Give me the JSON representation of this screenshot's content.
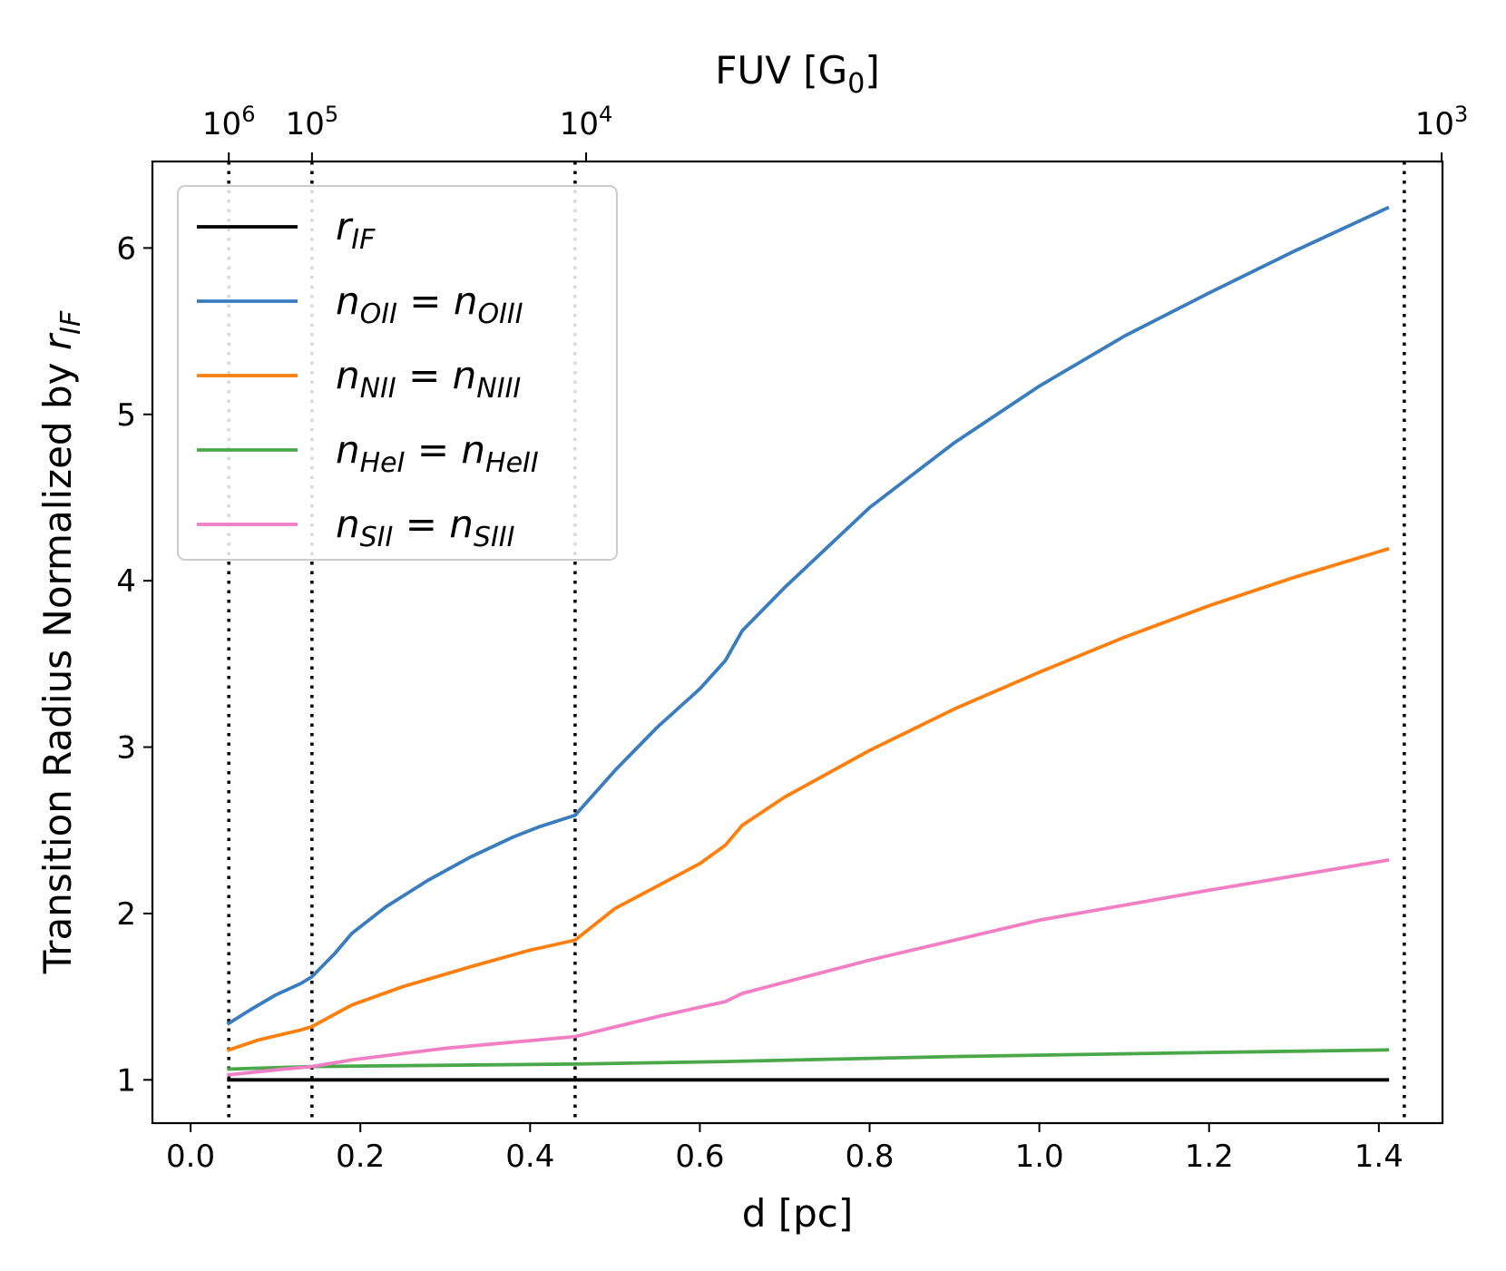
{
  "chart_data": {
    "type": "line",
    "xlabel": "d [pc]",
    "ylabel_prefix": "Transition Radius Normalized by ",
    "ylabel_var": "r",
    "ylabel_sub": "IF",
    "top_xlabel": "FUV [G",
    "top_xlabel_sub": "0",
    "top_xlabel_suffix": "]",
    "xlim": [
      -0.045,
      1.475
    ],
    "ylim": [
      0.74,
      6.52
    ],
    "xticks": [
      {
        "v": 0.0,
        "label": "0.0"
      },
      {
        "v": 0.2,
        "label": "0.2"
      },
      {
        "v": 0.4,
        "label": "0.4"
      },
      {
        "v": 0.6,
        "label": "0.6"
      },
      {
        "v": 0.8,
        "label": "0.8"
      },
      {
        "v": 1.0,
        "label": "1.0"
      },
      {
        "v": 1.2,
        "label": "1.2"
      },
      {
        "v": 1.4,
        "label": "1.4"
      }
    ],
    "yticks": [
      {
        "v": 1,
        "label": "1"
      },
      {
        "v": 2,
        "label": "2"
      },
      {
        "v": 3,
        "label": "3"
      },
      {
        "v": 4,
        "label": "4"
      },
      {
        "v": 5,
        "label": "5"
      },
      {
        "v": 6,
        "label": "6"
      }
    ],
    "top_ticks": [
      {
        "v": 0.045,
        "base": "10",
        "exp": "6"
      },
      {
        "v": 0.143,
        "base": "10",
        "exp": "5"
      },
      {
        "v": 0.466,
        "base": "10",
        "exp": "4"
      },
      {
        "v": 1.474,
        "base": "10",
        "exp": "3"
      }
    ],
    "vlines": [
      0.045,
      0.143,
      0.453,
      1.43
    ],
    "series": [
      {
        "name": "r_IF",
        "label_main": "r",
        "label_sub": "IF",
        "color": "#000000",
        "x": [
          0.045,
          1.41
        ],
        "y": [
          1.0,
          1.0
        ]
      },
      {
        "name": "n_OII = n_OIII",
        "label_a": "n",
        "label_a_sub": "OII",
        "label_b": "n",
        "label_b_sub": "OIII",
        "color": "#3a7dbf",
        "x": [
          0.045,
          0.07,
          0.1,
          0.13,
          0.143,
          0.17,
          0.19,
          0.23,
          0.28,
          0.33,
          0.38,
          0.41,
          0.453,
          0.5,
          0.55,
          0.6,
          0.63,
          0.65,
          0.7,
          0.8,
          0.9,
          1.0,
          1.1,
          1.2,
          1.3,
          1.41
        ],
        "y": [
          1.34,
          1.42,
          1.51,
          1.58,
          1.62,
          1.76,
          1.88,
          2.04,
          2.2,
          2.34,
          2.46,
          2.52,
          2.59,
          2.86,
          3.12,
          3.35,
          3.52,
          3.7,
          3.96,
          4.44,
          4.83,
          5.17,
          5.47,
          5.73,
          5.98,
          6.24
        ]
      },
      {
        "name": "n_NII = n_NIII",
        "label_a": "n",
        "label_a_sub": "NII",
        "label_b": "n",
        "label_b_sub": "NIII",
        "color": "#ff7f0e",
        "x": [
          0.045,
          0.08,
          0.13,
          0.143,
          0.19,
          0.25,
          0.33,
          0.4,
          0.453,
          0.5,
          0.6,
          0.63,
          0.65,
          0.7,
          0.8,
          0.9,
          1.0,
          1.1,
          1.2,
          1.3,
          1.41
        ],
        "y": [
          1.18,
          1.24,
          1.3,
          1.32,
          1.45,
          1.56,
          1.68,
          1.78,
          1.84,
          2.03,
          2.3,
          2.41,
          2.53,
          2.7,
          2.98,
          3.23,
          3.45,
          3.66,
          3.85,
          4.02,
          4.19
        ]
      },
      {
        "name": "n_HeI = n_HeII",
        "label_a": "n",
        "label_a_sub": "HeI",
        "label_b": "n",
        "label_b_sub": "HeII",
        "color": "#4aa84a",
        "x": [
          0.045,
          0.143,
          0.453,
          0.63,
          0.9,
          1.2,
          1.41
        ],
        "y": [
          1.065,
          1.08,
          1.095,
          1.11,
          1.14,
          1.165,
          1.18
        ]
      },
      {
        "name": "n_SII = n_SIII",
        "label_a": "n",
        "label_a_sub": "SII",
        "label_b": "n",
        "label_b_sub": "SIII",
        "color": "#f27fc4",
        "x": [
          0.045,
          0.1,
          0.143,
          0.19,
          0.3,
          0.453,
          0.55,
          0.63,
          0.65,
          0.8,
          1.0,
          1.2,
          1.41
        ],
        "y": [
          1.03,
          1.06,
          1.08,
          1.12,
          1.19,
          1.26,
          1.38,
          1.47,
          1.52,
          1.72,
          1.96,
          2.14,
          2.32
        ]
      }
    ]
  }
}
